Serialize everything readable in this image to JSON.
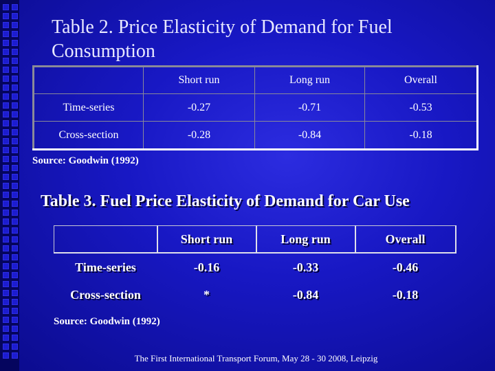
{
  "table2": {
    "title": "Table 2. Price Elasticity of Demand for Fuel Consumption",
    "headers": [
      "",
      "Short run",
      "Long run",
      "Overall"
    ],
    "rows": [
      [
        "Time-series",
        "-0.27",
        "-0.71",
        "-0.53"
      ],
      [
        "Cross-section",
        "-0.28",
        "-0.84",
        "-0.18"
      ]
    ],
    "source": "Source: Goodwin (1992)"
  },
  "table3": {
    "title": "Table 3. Fuel Price Elasticity of Demand for Car Use",
    "headers": [
      "",
      "Short run",
      "Long run",
      "Overall"
    ],
    "rows": [
      [
        "Time-series",
        "-0.16",
        "-0.33",
        "-0.46"
      ],
      [
        "Cross-section",
        "*",
        "-0.84",
        "-0.18"
      ]
    ],
    "source": "Source: Goodwin (1992)"
  },
  "footer": "The First International Transport Forum, May 28 - 30  2008,  Leipzig",
  "colors": {
    "background": "#1818c4",
    "strip": "#05055e",
    "text": "#ffffff"
  }
}
